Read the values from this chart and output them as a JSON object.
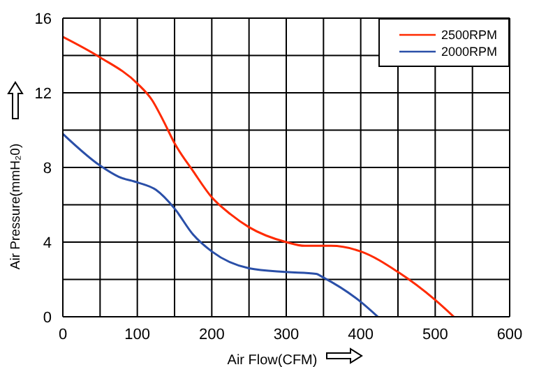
{
  "chart_data": {
    "type": "line",
    "xlabel": "Air Flow(CFM)",
    "ylabel": "Air Pressure(mmH₂0)",
    "xlim": [
      0,
      600
    ],
    "xticks": [
      0,
      {
        "value": 50,
        "label": null
      },
      100,
      {
        "value": 150,
        "label": null
      },
      200,
      {
        "value": 250,
        "label": null
      },
      300,
      {
        "value": 350,
        "label": null
      },
      400,
      {
        "value": 450,
        "label": null
      },
      500,
      {
        "value": 550,
        "label": null
      },
      600
    ],
    "ylim": [
      0,
      16
    ],
    "yticks": [
      0,
      {
        "value": 2,
        "label": null
      },
      4,
      {
        "value": 6,
        "label": null
      },
      8,
      {
        "value": 10,
        "label": null
      },
      12,
      {
        "value": 14,
        "label": null
      },
      16
    ],
    "grid": true,
    "legend": "top right",
    "series": [
      {
        "name": "2500RPM",
        "color": "#ff2a00",
        "x": [
          0,
          50,
          100,
          120,
          135,
          150,
          175,
          200,
          225,
          250,
          300,
          325,
          360,
          400,
          450,
          500,
          525
        ],
        "values": [
          15,
          13.9,
          12.5,
          11.6,
          10.5,
          9.3,
          7.8,
          6.4,
          5.5,
          4.8,
          4.0,
          3.8,
          3.8,
          3.5,
          2.4,
          0.9,
          0
        ]
      },
      {
        "name": "2000RPM",
        "color": "#2a4fa8",
        "x": [
          0,
          50,
          75,
          100,
          125,
          150,
          175,
          200,
          250,
          300,
          340,
          350,
          400,
          423
        ],
        "values": [
          9.8,
          8.1,
          7.5,
          7.2,
          6.8,
          5.8,
          4.4,
          3.5,
          2.6,
          2.4,
          2.3,
          2.1,
          0.8,
          0
        ]
      }
    ]
  }
}
